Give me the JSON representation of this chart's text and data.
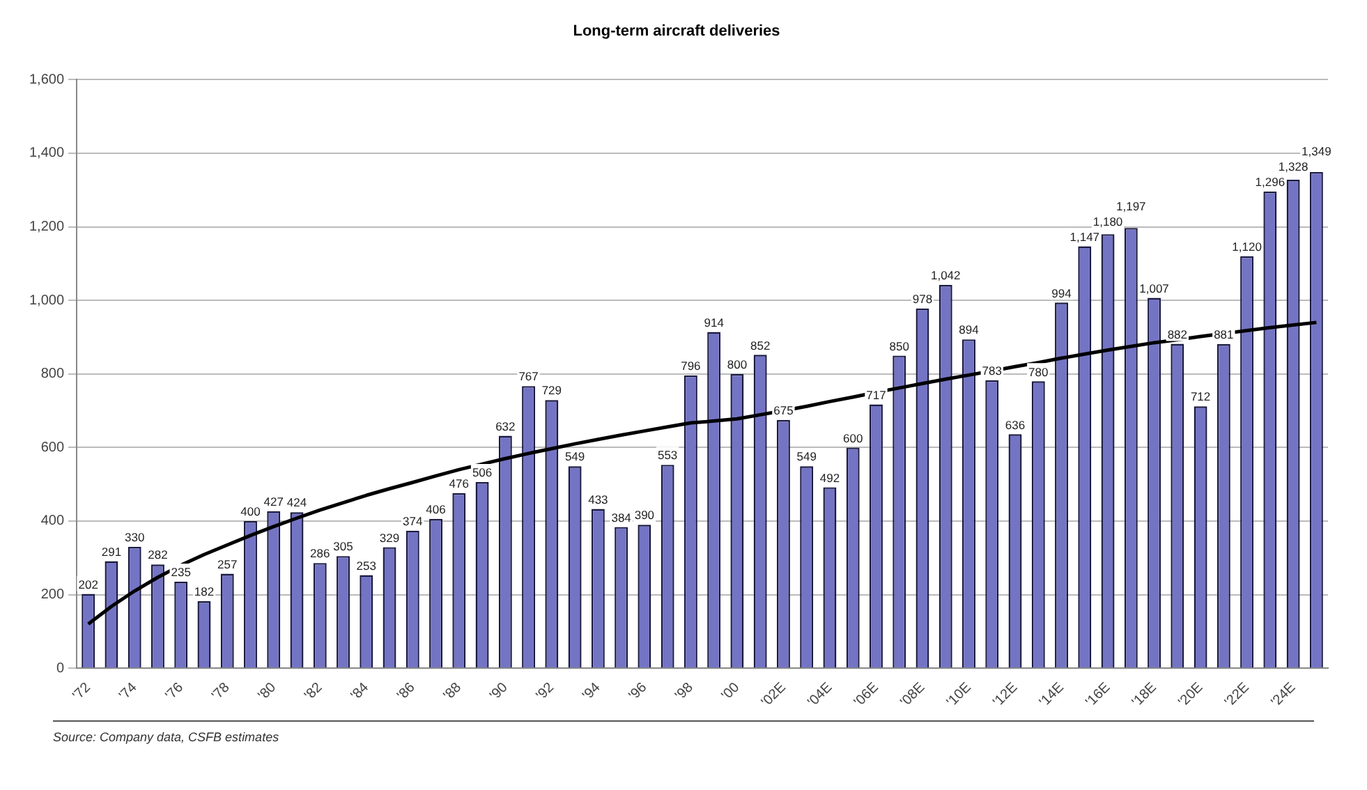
{
  "chart_data": {
    "type": "bar",
    "title": "Long-term aircraft deliveries",
    "annotations": [
      "Source: Company data, CSFB estimates"
    ],
    "categories": [
      "'72",
      null,
      "'74",
      null,
      "'76",
      null,
      "'78",
      null,
      "'80",
      null,
      "'82",
      null,
      "'84",
      null,
      "'86",
      null,
      "'88",
      null,
      "'90",
      null,
      "'92",
      null,
      "'94",
      null,
      "'96",
      null,
      "'98",
      null,
      "'00",
      null,
      "'02E",
      null,
      "'04E",
      null,
      "'06E",
      null,
      "'08E",
      null,
      "'10E",
      null,
      "'12E",
      null,
      "'14E",
      null,
      "'16E",
      null,
      "'18E",
      null,
      "'20E",
      null,
      "'22E",
      null,
      "'24E",
      null
    ],
    "series": [
      {
        "color": "#7474c4",
        "values": [
          202,
          291,
          330,
          282,
          235,
          182,
          257,
          400,
          427,
          424,
          286,
          305,
          253,
          329,
          374,
          406,
          476,
          506,
          632,
          767,
          729,
          549,
          433,
          384,
          390,
          553,
          796,
          914,
          800,
          852,
          675,
          549,
          492,
          600,
          717,
          850,
          978,
          1042,
          894,
          783,
          636,
          780,
          994,
          1147,
          1180,
          1197,
          1007,
          882,
          712,
          881,
          1120,
          1296,
          1328,
          1349
        ],
        "value_labels": [
          "202",
          "291",
          "330",
          "282",
          "235",
          "182",
          "257",
          "400",
          "427",
          "424",
          "286",
          "305",
          "253",
          "329",
          "374",
          "406",
          "476",
          "506",
          "632",
          "767",
          "729",
          "549",
          "433",
          "384",
          "390",
          "553",
          "796",
          "914",
          "800",
          "852",
          "675",
          "549",
          "492",
          "600",
          "717",
          "850",
          "978",
          "1,042",
          "894",
          "783",
          "636",
          "780",
          "994",
          "1,147",
          "1,180",
          "1,197",
          "1,007",
          "882",
          "712",
          "881",
          "1,120",
          "1,296",
          "1,328",
          "1,349"
        ]
      },
      {
        "type": "line",
        "color": "#000000",
        "values": [
          120,
          168,
          210,
          247,
          280,
          309,
          335,
          361,
          385,
          408,
          430,
          450,
          470,
          488,
          505,
          523,
          540,
          555,
          570,
          584,
          597,
          610,
          622,
          634,
          645,
          656,
          667,
          672,
          678,
          689,
          700,
          712,
          725,
          737,
          750,
          762,
          774,
          786,
          797,
          808,
          820,
          831,
          843,
          854,
          865,
          875,
          885,
          893,
          902,
          910,
          918,
          926,
          933,
          940
        ]
      }
    ],
    "ylim": [
      0,
      1600
    ],
    "yticks": [
      0,
      {
        "value": 200,
        "label": "200"
      },
      {
        "value": 400,
        "label": "400"
      },
      {
        "value": 600,
        "label": "600"
      },
      {
        "value": 800,
        "label": "800"
      },
      {
        "value": 1000,
        "label": "1,000"
      },
      {
        "value": 1200,
        "label": "1,200"
      },
      {
        "value": 1400,
        "label": "1,400"
      },
      {
        "value": 1600,
        "label": "1,600"
      }
    ],
    "grid": "y",
    "legend": false,
    "marker": "none"
  }
}
